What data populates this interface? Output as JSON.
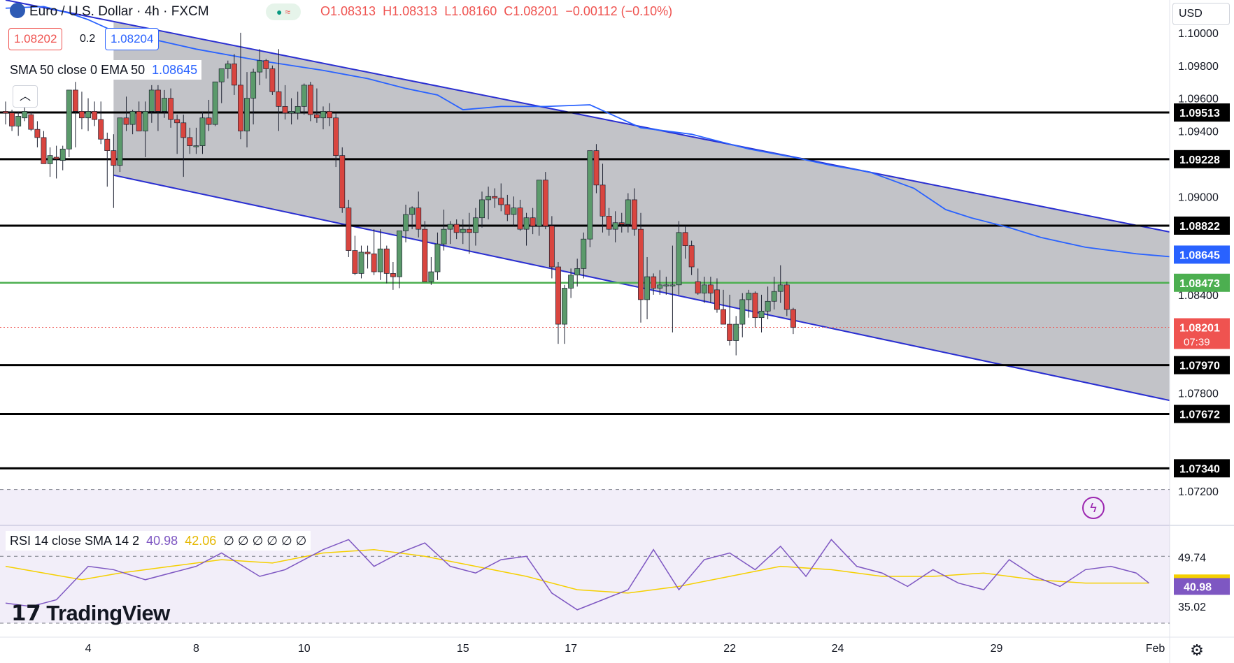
{
  "header": {
    "symbol": "Euro / U.S. Dollar · 4h · FXCM",
    "open": "O1.08313",
    "high": "H1.08313",
    "low": "L1.08160",
    "close": "C1.08201",
    "change": "−0.00112 (−0.10%)",
    "bid": "1.08202",
    "spread": "0.2",
    "ask": "1.08204",
    "indicator_name": "SMA 50 close 0 EMA 50",
    "indicator_value": "1.08645"
  },
  "currency": "USD",
  "rsi_header": {
    "name": "RSI 14 close SMA 14 2",
    "rsi": "40.98",
    "sma": "42.06",
    "blanks": "∅ ∅ ∅ ∅ ∅ ∅"
  },
  "logo": "TradingView",
  "colors": {
    "up": "#26a69a",
    "down": "#ef5350",
    "up_fill": "#5b9a6b",
    "down_fill": "#d9453f",
    "channel": "#2a2fd1",
    "sma": "#2962ff",
    "green_line": "#4caf50",
    "rsi": "#7e57c2",
    "rsi_sma": "#f5d000"
  },
  "chart_data": {
    "type": "candlestick",
    "title": "Euro / U.S. Dollar · 4h · FXCM",
    "ylim": [
      1.07,
      1.102
    ],
    "y_ticks": [
      "1.10000",
      "1.09800",
      "1.09600",
      "1.09400",
      "1.09000",
      "1.08400",
      "1.07800",
      "1.07200"
    ],
    "x_ticks": [
      {
        "label": "4",
        "i": 13
      },
      {
        "label": "8",
        "i": 30
      },
      {
        "label": "10",
        "i": 47
      },
      {
        "label": "15",
        "i": 72
      },
      {
        "label": "17",
        "i": 89
      },
      {
        "label": "22",
        "i": 114
      },
      {
        "label": "24",
        "i": 131
      },
      {
        "label": "29",
        "i": 156
      },
      {
        "label": "Feb",
        "i": 181
      }
    ],
    "horizontal_levels": [
      1.09513,
      1.09228,
      1.08822,
      1.0797,
      1.07672,
      1.0734
    ],
    "support_level": 1.08473,
    "sma_value": 1.08645,
    "last_price": 1.08201,
    "countdown": "07:39",
    "channel": {
      "upper": [
        [
          0,
          1.102
        ],
        [
          185,
          1.0877
        ]
      ],
      "lower": [
        [
          17,
          1.0913
        ],
        [
          185,
          1.0774
        ]
      ]
    },
    "candles_ohlc": [
      [
        1.0952,
        1.0958,
        1.0944,
        1.0951
      ],
      [
        1.0951,
        1.0953,
        1.094,
        1.0943
      ],
      [
        1.0943,
        1.0952,
        1.0937,
        1.0949
      ],
      [
        1.0948,
        1.0958,
        1.0946,
        1.0952
      ],
      [
        1.095,
        1.0952,
        1.094,
        1.0941
      ],
      [
        1.0941,
        1.0946,
        1.093,
        1.0936
      ],
      [
        1.0936,
        1.094,
        1.0924,
        1.092
      ],
      [
        1.092,
        1.093,
        1.0912,
        1.0925
      ],
      [
        1.0924,
        1.0931,
        1.0911,
        1.0923
      ],
      [
        1.0922,
        1.0931,
        1.0916,
        1.0929
      ],
      [
        1.0929,
        1.0958,
        1.0924,
        1.0965
      ],
      [
        1.0965,
        1.097,
        1.093,
        1.0952
      ],
      [
        1.0952,
        1.0964,
        1.0941,
        1.0948
      ],
      [
        1.0948,
        1.096,
        1.094,
        1.0952
      ],
      [
        1.0952,
        1.0958,
        1.0943,
        1.0947
      ],
      [
        1.0947,
        1.0958,
        1.0932,
        1.0935
      ],
      [
        1.0935,
        1.0939,
        1.0906,
        1.0928
      ],
      [
        1.0928,
        1.0938,
        1.0893,
        1.0919
      ],
      [
        1.0919,
        1.0947,
        1.0915,
        1.0948
      ],
      [
        1.0948,
        1.0961,
        1.094,
        1.0944
      ],
      [
        1.0944,
        1.0953,
        1.0938,
        1.0952
      ],
      [
        1.0952,
        1.0958,
        1.094,
        1.094
      ],
      [
        1.094,
        1.0958,
        1.0924,
        1.0952
      ],
      [
        1.0952,
        1.0968,
        1.0945,
        1.0965
      ],
      [
        1.0965,
        1.0968,
        1.094,
        1.0952
      ],
      [
        1.0952,
        1.0965,
        1.0948,
        1.096
      ],
      [
        1.096,
        1.0966,
        1.0942,
        1.0947
      ],
      [
        1.0947,
        1.095,
        1.0926,
        1.0945
      ],
      [
        1.0945,
        1.095,
        1.0912,
        1.0936
      ],
      [
        1.0936,
        1.0942,
        1.0926,
        1.0931
      ],
      [
        1.0931,
        1.0942,
        1.0926,
        1.0931
      ],
      [
        1.0931,
        1.0952,
        1.0926,
        1.0948
      ],
      [
        1.0948,
        1.0959,
        1.094,
        1.0944
      ],
      [
        1.0944,
        1.097,
        1.0943,
        1.097
      ],
      [
        1.097,
        1.0976,
        1.0957,
        1.0978
      ],
      [
        1.0978,
        1.0983,
        1.0972,
        1.0981
      ],
      [
        1.0981,
        1.0987,
        1.0962,
        1.0968
      ],
      [
        1.0968,
        1.1,
        1.0935,
        1.094
      ],
      [
        1.094,
        1.0976,
        1.093,
        1.096
      ],
      [
        1.096,
        1.0978,
        1.0944,
        1.0976
      ],
      [
        1.0976,
        1.099,
        1.0968,
        1.0983
      ],
      [
        1.0983,
        1.0984,
        1.0972,
        1.0978
      ],
      [
        1.0978,
        1.098,
        1.0962,
        1.0964
      ],
      [
        1.0964,
        1.099,
        1.094,
        1.0955
      ],
      [
        1.0955,
        1.0968,
        1.0947,
        1.0951
      ],
      [
        1.0951,
        1.096,
        1.0944,
        1.0952
      ],
      [
        1.0951,
        1.0964,
        1.0947,
        1.0955
      ],
      [
        1.0955,
        1.0969,
        1.095,
        1.0968
      ],
      [
        1.0968,
        1.097,
        1.0946,
        1.095
      ],
      [
        1.095,
        1.0966,
        1.0945,
        1.0948
      ],
      [
        1.0948,
        1.0955,
        1.0941,
        1.0952
      ],
      [
        1.0952,
        1.0957,
        1.0943,
        1.0948
      ],
      [
        1.0948,
        1.0951,
        1.0918,
        1.0925
      ],
      [
        1.0925,
        1.093,
        1.089,
        1.0893
      ],
      [
        1.0893,
        1.0898,
        1.0863,
        1.0867
      ],
      [
        1.0867,
        1.0876,
        1.0852,
        1.0853
      ],
      [
        1.0853,
        1.087,
        1.085,
        1.0866
      ],
      [
        1.0866,
        1.087,
        1.0856,
        1.0865
      ],
      [
        1.0865,
        1.088,
        1.0852,
        1.0854
      ],
      [
        1.0854,
        1.088,
        1.0849,
        1.0868
      ],
      [
        1.0868,
        1.087,
        1.0847,
        1.0853
      ],
      [
        1.0853,
        1.086,
        1.0843,
        1.0851
      ],
      [
        1.0851,
        1.0872,
        1.0844,
        1.0879
      ],
      [
        1.0879,
        1.0895,
        1.0872,
        1.0889
      ],
      [
        1.0889,
        1.0894,
        1.088,
        1.0893
      ],
      [
        1.0893,
        1.0903,
        1.0875,
        1.088
      ],
      [
        1.088,
        1.0885,
        1.0848,
        1.0848
      ],
      [
        1.0848,
        1.0863,
        1.0846,
        1.0854
      ],
      [
        1.0854,
        1.0878,
        1.0849,
        1.0871
      ],
      [
        1.0871,
        1.0892,
        1.0867,
        1.088
      ],
      [
        1.088,
        1.0885,
        1.0871,
        1.0883
      ],
      [
        1.0883,
        1.0886,
        1.0874,
        1.0878
      ],
      [
        1.0878,
        1.0886,
        1.0871,
        1.088
      ],
      [
        1.088,
        1.089,
        1.0865,
        1.0878
      ],
      [
        1.0878,
        1.0893,
        1.087,
        1.0887
      ],
      [
        1.0887,
        1.0903,
        1.0881,
        1.0898
      ],
      [
        1.0898,
        1.0906,
        1.0886,
        1.09
      ],
      [
        1.09,
        1.0905,
        1.0893,
        1.0899
      ],
      [
        1.0899,
        1.0908,
        1.0891,
        1.0895
      ],
      [
        1.0895,
        1.0901,
        1.0885,
        1.0889
      ],
      [
        1.0889,
        1.09,
        1.0882,
        1.0893
      ],
      [
        1.0893,
        1.0898,
        1.0879,
        1.088
      ],
      [
        1.088,
        1.089,
        1.087,
        1.0887
      ],
      [
        1.0887,
        1.0893,
        1.0877,
        1.0882
      ],
      [
        1.0882,
        1.0905,
        1.0876,
        1.091
      ],
      [
        1.091,
        1.0915,
        1.088,
        1.0882
      ],
      [
        1.0882,
        1.0888,
        1.085,
        1.0857
      ],
      [
        1.0857,
        1.086,
        1.081,
        1.0822
      ],
      [
        1.0822,
        1.0846,
        1.081,
        1.0844
      ],
      [
        1.0844,
        1.0856,
        1.0838,
        1.0852
      ],
      [
        1.0852,
        1.0862,
        1.0845,
        1.0856
      ],
      [
        1.0856,
        1.0878,
        1.085,
        1.0874
      ],
      [
        1.0874,
        1.0918,
        1.0869,
        1.0928
      ],
      [
        1.0928,
        1.0932,
        1.0902,
        1.0907
      ],
      [
        1.0907,
        1.092,
        1.0878,
        1.0888
      ],
      [
        1.0888,
        1.0893,
        1.0876,
        1.088
      ],
      [
        1.088,
        1.0891,
        1.0872,
        1.0884
      ],
      [
        1.0884,
        1.089,
        1.0878,
        1.0883
      ],
      [
        1.0883,
        1.0902,
        1.0878,
        1.0898
      ],
      [
        1.0898,
        1.0905,
        1.0876,
        1.088
      ],
      [
        1.088,
        1.089,
        1.0823,
        1.0837
      ],
      [
        1.0837,
        1.0863,
        1.0825,
        1.0851
      ],
      [
        1.0851,
        1.0853,
        1.084,
        1.0844
      ],
      [
        1.0844,
        1.0855,
        1.084,
        1.0846
      ],
      [
        1.0846,
        1.0851,
        1.084,
        1.0846
      ],
      [
        1.0846,
        1.087,
        1.0817,
        1.0846
      ],
      [
        1.0846,
        1.0885,
        1.084,
        1.0878
      ],
      [
        1.0878,
        1.0882,
        1.0862,
        1.087
      ],
      [
        1.087,
        1.0873,
        1.0852,
        1.0857
      ],
      [
        1.0848,
        1.0856,
        1.084,
        1.0841
      ],
      [
        1.0841,
        1.0851,
        1.0835,
        1.0846
      ],
      [
        1.0846,
        1.0851,
        1.0835,
        1.0841
      ],
      [
        1.0843,
        1.085,
        1.0829,
        1.0831
      ],
      [
        1.0831,
        1.0843,
        1.0822,
        1.0822
      ],
      [
        1.0822,
        1.084,
        1.0809,
        1.0812
      ],
      [
        1.0812,
        1.0827,
        1.0803,
        1.0822
      ],
      [
        1.0822,
        1.0841,
        1.0814,
        1.0837
      ],
      [
        1.0837,
        1.0843,
        1.0826,
        1.0841
      ],
      [
        1.0841,
        1.0842,
        1.082,
        1.0826
      ],
      [
        1.0826,
        1.084,
        1.0817,
        1.083
      ],
      [
        1.083,
        1.0845,
        1.0825,
        1.0836
      ],
      [
        1.0836,
        1.0851,
        1.0831,
        1.0842
      ],
      [
        1.0842,
        1.0858,
        1.0835,
        1.0846
      ],
      [
        1.0846,
        1.0848,
        1.0827,
        1.0831
      ],
      [
        1.0831,
        1.0832,
        1.0816,
        1.082
      ]
    ],
    "sma_line": [
      [
        0,
        1.1015
      ],
      [
        6,
        1.1016
      ],
      [
        10,
        1.1012
      ],
      [
        13,
        1.1008
      ],
      [
        17,
        1.1001
      ],
      [
        22,
        1.0997
      ],
      [
        30,
        1.099
      ],
      [
        40,
        1.0983
      ],
      [
        50,
        1.0977
      ],
      [
        57,
        1.0972
      ],
      [
        63,
        1.0966
      ],
      [
        68,
        1.0962
      ],
      [
        72,
        1.0953
      ],
      [
        78,
        1.0955
      ],
      [
        85,
        1.0955
      ],
      [
        92,
        1.0956
      ],
      [
        100,
        1.0942
      ],
      [
        108,
        1.0938
      ],
      [
        117,
        1.0929
      ],
      [
        124,
        1.0924
      ],
      [
        130,
        1.0919
      ],
      [
        136,
        1.0915
      ],
      [
        143,
        1.0905
      ],
      [
        148,
        1.0892
      ],
      [
        152,
        1.0887
      ],
      [
        158,
        1.0881
      ],
      [
        163,
        1.0875
      ],
      [
        170,
        1.0869
      ],
      [
        178,
        1.0865
      ],
      [
        184,
        1.0863
      ]
    ],
    "rsi_panel": {
      "ylim": [
        30,
        58
      ],
      "levels": [
        70,
        50,
        30
      ],
      "tick_labels": [
        "49.74",
        "35.02"
      ],
      "rsi": [
        [
          0,
          36
        ],
        [
          4,
          35
        ],
        [
          8,
          37
        ],
        [
          13,
          47
        ],
        [
          17,
          46
        ],
        [
          22,
          43
        ],
        [
          30,
          47
        ],
        [
          34,
          51
        ],
        [
          40,
          44
        ],
        [
          44,
          46
        ],
        [
          50,
          52
        ],
        [
          54,
          55
        ],
        [
          58,
          47
        ],
        [
          62,
          51
        ],
        [
          66,
          54
        ],
        [
          70,
          47
        ],
        [
          74,
          45
        ],
        [
          78,
          49
        ],
        [
          82,
          50
        ],
        [
          86,
          39
        ],
        [
          90,
          34
        ],
        [
          94,
          37
        ],
        [
          98,
          40
        ],
        [
          102,
          52
        ],
        [
          106,
          40
        ],
        [
          110,
          49
        ],
        [
          114,
          51
        ],
        [
          118,
          46
        ],
        [
          122,
          53
        ],
        [
          126,
          44
        ],
        [
          130,
          55
        ],
        [
          134,
          47
        ],
        [
          138,
          45
        ],
        [
          142,
          41
        ],
        [
          146,
          46
        ],
        [
          150,
          42
        ],
        [
          154,
          40
        ],
        [
          158,
          49
        ],
        [
          162,
          44
        ],
        [
          166,
          41
        ],
        [
          170,
          46
        ],
        [
          174,
          47
        ],
        [
          178,
          45
        ],
        [
          180,
          42
        ]
      ],
      "rsi_sma": [
        [
          0,
          47
        ],
        [
          6,
          45
        ],
        [
          12,
          43
        ],
        [
          18,
          45
        ],
        [
          26,
          47
        ],
        [
          34,
          49
        ],
        [
          42,
          48
        ],
        [
          50,
          51
        ],
        [
          58,
          52
        ],
        [
          66,
          50
        ],
        [
          74,
          47
        ],
        [
          82,
          44
        ],
        [
          90,
          40
        ],
        [
          98,
          39
        ],
        [
          106,
          41
        ],
        [
          114,
          44
        ],
        [
          122,
          47
        ],
        [
          130,
          46
        ],
        [
          138,
          44
        ],
        [
          146,
          44
        ],
        [
          154,
          45
        ],
        [
          162,
          43
        ],
        [
          170,
          42
        ],
        [
          180,
          42
        ]
      ]
    }
  }
}
